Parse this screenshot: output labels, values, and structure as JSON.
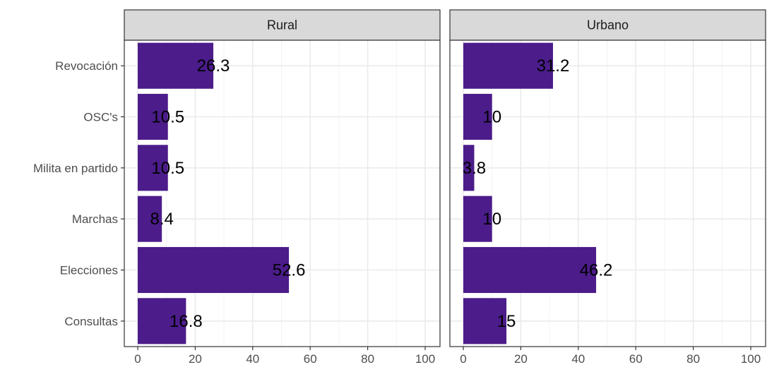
{
  "chart_data": {
    "type": "bar",
    "orientation": "horizontal",
    "categories": [
      "Revocación",
      "OSC's",
      "Milita en partido",
      "Marchas",
      "Elecciones",
      "Consultas"
    ],
    "panels": [
      {
        "name": "Rural",
        "values": [
          26.3,
          10.5,
          10.5,
          8.4,
          52.6,
          16.8
        ],
        "labels": [
          "26.3",
          "10.5",
          "10.5",
          "8.4",
          "52.6",
          "16.8"
        ]
      },
      {
        "name": "Urbano",
        "values": [
          31.2,
          10,
          3.8,
          10,
          46.2,
          15
        ],
        "labels": [
          "31.2",
          "10",
          "3.8",
          "10",
          "46.2",
          "15"
        ]
      }
    ],
    "xlim": [
      0,
      100
    ],
    "xticks": [
      "0",
      "20",
      "40",
      "60",
      "80",
      "100"
    ],
    "bar_color": "#4b1c8a",
    "grid": true,
    "title": "",
    "xlabel": "",
    "ylabel": ""
  }
}
